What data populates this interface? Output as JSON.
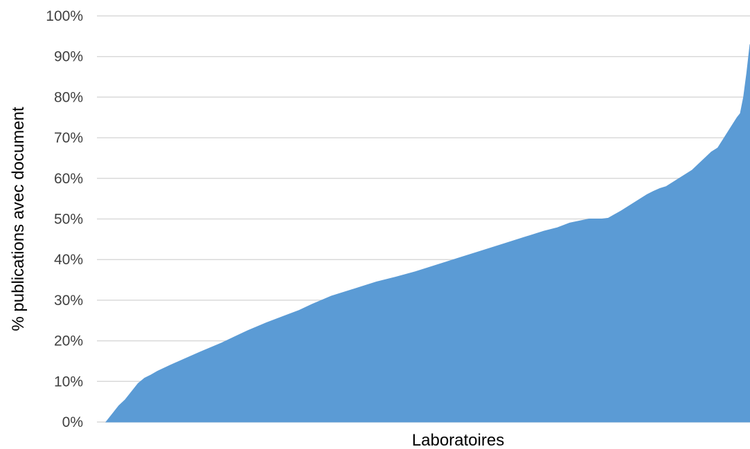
{
  "chart_data": {
    "type": "area",
    "title": "",
    "xlabel": "Laboratoires",
    "ylabel": "% publications avec document",
    "ylim": [
      0,
      100
    ],
    "yticks": [
      "0%",
      "10%",
      "20%",
      "30%",
      "40%",
      "50%",
      "60%",
      "70%",
      "80%",
      "90%",
      "100%"
    ],
    "grid": true,
    "legend": "none",
    "colors": {
      "area": "#5b9bd5",
      "grid": "#d9d9d9",
      "tick_text": "#404040"
    },
    "x_description": "laboratories sorted by ascending share (rank percentile, 0-100)",
    "series": [
      {
        "x": [
          0,
          1,
          2,
          3,
          4,
          5,
          6,
          7,
          8,
          10,
          12,
          15,
          18,
          20,
          22,
          25,
          28,
          30,
          32,
          35,
          38,
          40,
          42,
          45,
          48,
          50,
          52,
          55,
          58,
          60,
          62,
          65,
          68,
          70,
          72,
          75,
          77,
          78,
          80,
          82,
          84,
          85,
          86,
          87,
          88,
          89,
          90,
          91,
          92,
          93,
          94,
          95,
          96,
          97,
          98,
          98.5,
          99,
          99.5,
          100
        ],
        "values": [
          0,
          2,
          4,
          5.5,
          7.5,
          9.5,
          10.8,
          11.6,
          12.5,
          14,
          15.4,
          17.5,
          19.5,
          21,
          22.5,
          24.5,
          26.3,
          27.5,
          29,
          31,
          32.5,
          33.5,
          34.5,
          35.7,
          37,
          38,
          39,
          40.5,
          42,
          43,
          44,
          45.5,
          47,
          47.8,
          49,
          50,
          50,
          50.2,
          52,
          54,
          56,
          56.8,
          57.5,
          58,
          59,
          60,
          61,
          62,
          63.5,
          65,
          66.5,
          67.5,
          70,
          72.5,
          75,
          76,
          80,
          86,
          93
        ]
      }
    ]
  }
}
